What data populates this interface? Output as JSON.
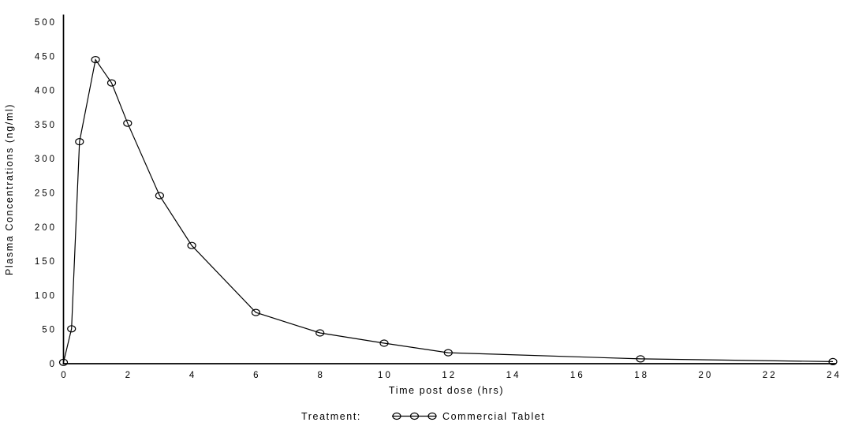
{
  "figure": {
    "background": "#ffffff",
    "foreground": "#000000"
  },
  "chart_data": {
    "type": "line",
    "title": "",
    "xlabel": "Time post dose (hrs)",
    "ylabel": "Plasma Concentrations (ng/ml)",
    "xlim": [
      0,
      24
    ],
    "ylim": [
      0,
      500
    ],
    "x_ticks": [
      0,
      2,
      4,
      6,
      8,
      10,
      12,
      14,
      16,
      18,
      20,
      22,
      24
    ],
    "y_ticks": [
      0,
      50,
      100,
      150,
      200,
      250,
      300,
      350,
      400,
      450,
      500
    ],
    "grid": false,
    "line_color": "#000000",
    "marker": "open-ellipse",
    "x": [
      0,
      0.25,
      0.5,
      1,
      1.5,
      2,
      3,
      4,
      6,
      8,
      10,
      12,
      18,
      24
    ],
    "series": [
      {
        "name": "Commercial Tablet",
        "values": [
          2,
          51,
          325,
          445,
          411,
          352,
          246,
          173,
          75,
          45,
          30,
          16,
          7,
          3
        ]
      }
    ],
    "legend": {
      "position": "bottom",
      "label": "Treatment:",
      "entries": [
        {
          "name": "Commercial Tablet",
          "marker": "open-ellipse-line"
        }
      ]
    }
  }
}
